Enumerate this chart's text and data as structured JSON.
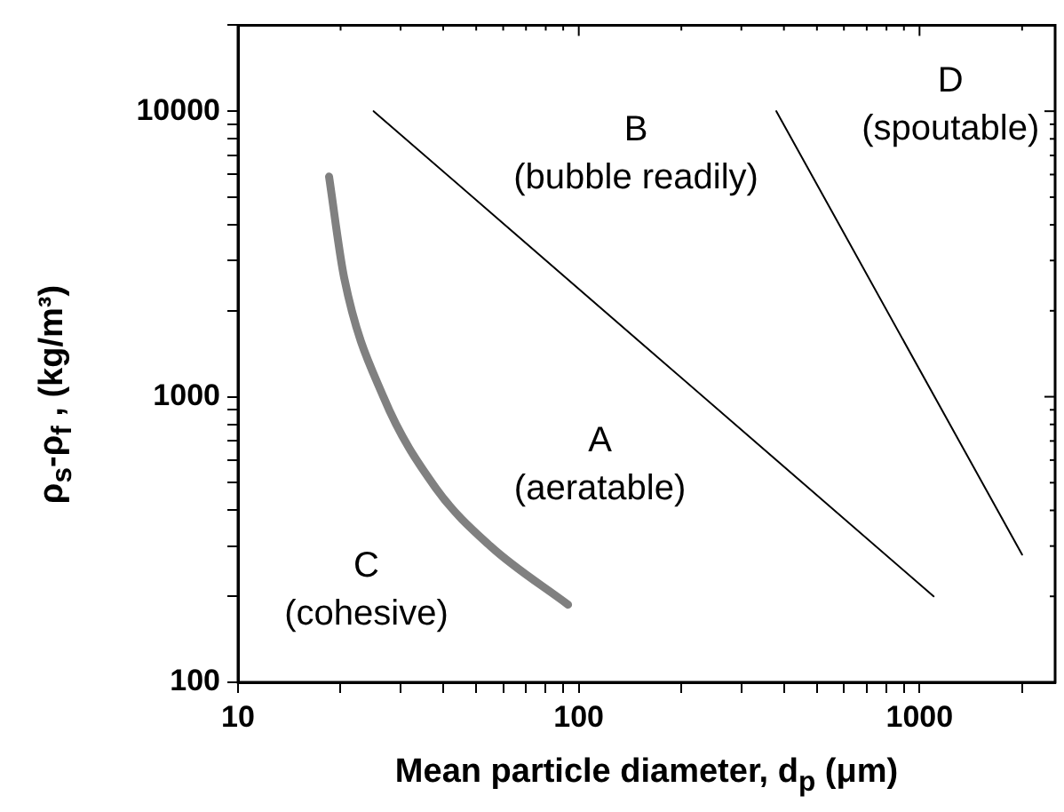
{
  "chart_data": {
    "type": "line",
    "xlabel": "Mean particle diameter, d$_{p}$ (μm)",
    "ylabel": "ρ$_{s}$-ρ$_{f}$ , (kg/m³)",
    "log": "xy",
    "grid": false,
    "legend": false,
    "marker": "none",
    "xlim": [
      10,
      2500
    ],
    "xticks": [
      10,
      {
        "value": 20,
        "label": null
      },
      {
        "value": 30,
        "label": null
      },
      {
        "value": 40,
        "label": null
      },
      {
        "value": 50,
        "label": null
      },
      {
        "value": 60,
        "label": null
      },
      {
        "value": 70,
        "label": null
      },
      {
        "value": 80,
        "label": null
      },
      {
        "value": 90,
        "label": null
      },
      100,
      {
        "value": 200,
        "label": null
      },
      {
        "value": 300,
        "label": null
      },
      {
        "value": 400,
        "label": null
      },
      {
        "value": 500,
        "label": null
      },
      {
        "value": 600,
        "label": null
      },
      {
        "value": 700,
        "label": null
      },
      {
        "value": 800,
        "label": null
      },
      {
        "value": 900,
        "label": null
      },
      1000,
      {
        "value": 2000,
        "label": null
      }
    ],
    "ylim": [
      100,
      20000
    ],
    "yticks": [
      100,
      {
        "value": 200,
        "label": null
      },
      {
        "value": 300,
        "label": null
      },
      {
        "value": 400,
        "label": null
      },
      {
        "value": 500,
        "label": null
      },
      {
        "value": 600,
        "label": null
      },
      {
        "value": 700,
        "label": null
      },
      {
        "value": 800,
        "label": null
      },
      {
        "value": 900,
        "label": null
      },
      1000,
      {
        "value": 2000,
        "label": null
      },
      {
        "value": 3000,
        "label": null
      },
      {
        "value": 4000,
        "label": null
      },
      {
        "value": 5000,
        "label": null
      },
      {
        "value": 6000,
        "label": null
      },
      {
        "value": 7000,
        "label": null
      },
      {
        "value": 8000,
        "label": null
      },
      {
        "value": 9000,
        "label": null
      },
      10000,
      {
        "value": 20000,
        "label": null
      }
    ],
    "series": [
      {
        "color": "#000000",
        "x": [
          25,
          1100
        ],
        "values": [
          10000,
          200
        ]
      },
      {
        "color": "#000000",
        "x": [
          380,
          2000
        ],
        "values": [
          10000,
          280
        ]
      },
      {
        "color": "#808080",
        "x": [
          18.5,
          20.5,
          26.7,
          38,
          55,
          93
        ],
        "values": [
          5900,
          2600,
          1000,
          480,
          300,
          187
        ]
      }
    ],
    "annotations": [
      "A\n(aeratable)",
      "B\n(bubble readily)",
      "C\n(cohesive)",
      "D\n(spoutable)"
    ]
  }
}
